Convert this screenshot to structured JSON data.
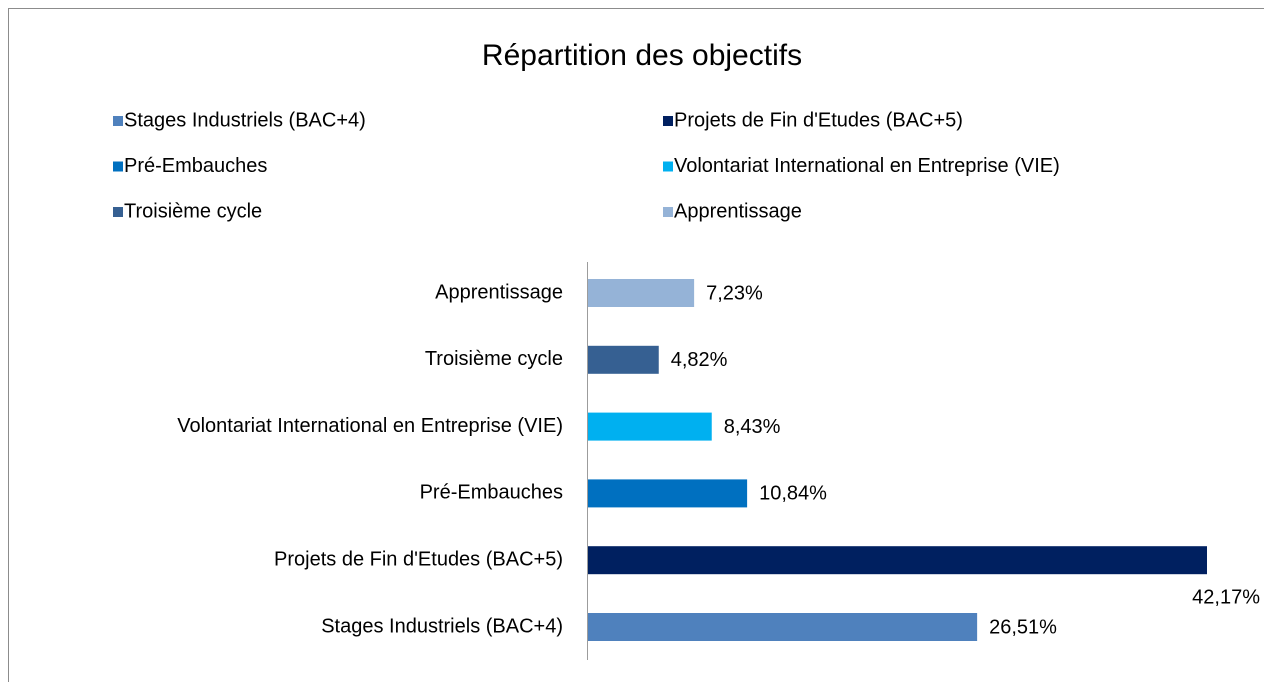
{
  "chart_data": {
    "type": "barh",
    "title": "Répartition des objectifs",
    "categories": [
      "Stages Industriels (BAC+4)",
      "Projets de Fin d'Etudes (BAC+5)",
      "Pré-Embauches",
      "Volontariat International en Entreprise (VIE)",
      "Troisième cycle",
      "Apprentissage"
    ],
    "values": [
      26.51,
      42.17,
      10.84,
      8.43,
      4.82,
      7.23
    ],
    "value_labels": [
      "26,51%",
      "42,17%",
      "10,84%",
      "8,43%",
      "4,82%",
      "7,23%"
    ],
    "colors": [
      "#4f81bd",
      "#002060",
      "#0070c0",
      "#00b0f0",
      "#366092",
      "#95b3d7"
    ]
  }
}
